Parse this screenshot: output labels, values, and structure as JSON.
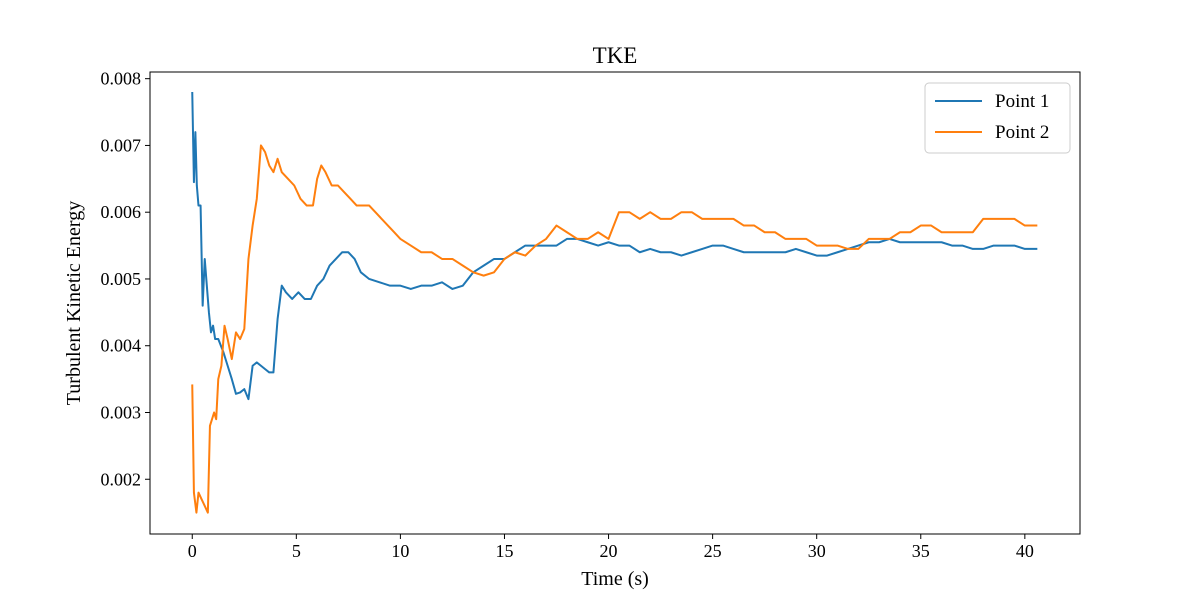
{
  "chart_data": {
    "type": "line",
    "title": "TKE",
    "xlabel": "Time (s)",
    "ylabel": "Turbulent Kinetic Energy",
    "xlim": [
      -2.03,
      42.65
    ],
    "ylim": [
      0.00118,
      0.0081
    ],
    "xticks": [
      0,
      5,
      10,
      15,
      20,
      25,
      30,
      35,
      40
    ],
    "xtick_labels": [
      "0",
      "5",
      "10",
      "15",
      "20",
      "25",
      "30",
      "35",
      "40"
    ],
    "yticks": [
      0.002,
      0.003,
      0.004,
      0.005,
      0.006,
      0.007,
      0.008
    ],
    "ytick_labels": [
      "0.002",
      "0.003",
      "0.004",
      "0.005",
      "0.006",
      "0.007",
      "0.008"
    ],
    "grid": false,
    "legend_position": "top-right",
    "series": [
      {
        "name": "Point 1",
        "color": "#1f77b4",
        "points": [
          [
            0.0,
            0.0078
          ],
          [
            0.08,
            0.00645
          ],
          [
            0.15,
            0.0072
          ],
          [
            0.22,
            0.0064
          ],
          [
            0.3,
            0.0061
          ],
          [
            0.4,
            0.0061
          ],
          [
            0.5,
            0.0046
          ],
          [
            0.6,
            0.0053
          ],
          [
            0.7,
            0.0049
          ],
          [
            0.8,
            0.0045
          ],
          [
            0.9,
            0.0042
          ],
          [
            1.0,
            0.0043
          ],
          [
            1.1,
            0.0041
          ],
          [
            1.25,
            0.0041
          ],
          [
            1.5,
            0.0039
          ],
          [
            1.7,
            0.0037
          ],
          [
            1.9,
            0.0035
          ],
          [
            2.1,
            0.00328
          ],
          [
            2.3,
            0.0033
          ],
          [
            2.5,
            0.00335
          ],
          [
            2.7,
            0.0032
          ],
          [
            2.9,
            0.0037
          ],
          [
            3.1,
            0.00375
          ],
          [
            3.3,
            0.0037
          ],
          [
            3.5,
            0.00365
          ],
          [
            3.7,
            0.0036
          ],
          [
            3.9,
            0.0036
          ],
          [
            4.1,
            0.0044
          ],
          [
            4.3,
            0.0049
          ],
          [
            4.5,
            0.0048
          ],
          [
            4.8,
            0.0047
          ],
          [
            5.1,
            0.0048
          ],
          [
            5.4,
            0.0047
          ],
          [
            5.7,
            0.0047
          ],
          [
            6.0,
            0.0049
          ],
          [
            6.3,
            0.005
          ],
          [
            6.6,
            0.0052
          ],
          [
            6.9,
            0.0053
          ],
          [
            7.2,
            0.0054
          ],
          [
            7.5,
            0.0054
          ],
          [
            7.8,
            0.0053
          ],
          [
            8.1,
            0.0051
          ],
          [
            8.5,
            0.005
          ],
          [
            9.0,
            0.00495
          ],
          [
            9.5,
            0.0049
          ],
          [
            10.0,
            0.0049
          ],
          [
            10.5,
            0.00485
          ],
          [
            11.0,
            0.0049
          ],
          [
            11.5,
            0.0049
          ],
          [
            12.0,
            0.00495
          ],
          [
            12.5,
            0.00485
          ],
          [
            13.0,
            0.0049
          ],
          [
            13.5,
            0.0051
          ],
          [
            14.0,
            0.0052
          ],
          [
            14.5,
            0.0053
          ],
          [
            15.0,
            0.0053
          ],
          [
            15.5,
            0.0054
          ],
          [
            16.0,
            0.0055
          ],
          [
            16.5,
            0.0055
          ],
          [
            17.0,
            0.0055
          ],
          [
            17.5,
            0.0055
          ],
          [
            18.0,
            0.0056
          ],
          [
            18.5,
            0.0056
          ],
          [
            19.0,
            0.00555
          ],
          [
            19.5,
            0.0055
          ],
          [
            20.0,
            0.00555
          ],
          [
            20.5,
            0.0055
          ],
          [
            21.0,
            0.0055
          ],
          [
            21.5,
            0.0054
          ],
          [
            22.0,
            0.00545
          ],
          [
            22.5,
            0.0054
          ],
          [
            23.0,
            0.0054
          ],
          [
            23.5,
            0.00535
          ],
          [
            24.0,
            0.0054
          ],
          [
            24.5,
            0.00545
          ],
          [
            25.0,
            0.0055
          ],
          [
            25.5,
            0.0055
          ],
          [
            26.0,
            0.00545
          ],
          [
            26.5,
            0.0054
          ],
          [
            27.0,
            0.0054
          ],
          [
            27.5,
            0.0054
          ],
          [
            28.0,
            0.0054
          ],
          [
            28.5,
            0.0054
          ],
          [
            29.0,
            0.00545
          ],
          [
            29.5,
            0.0054
          ],
          [
            30.0,
            0.00535
          ],
          [
            30.5,
            0.00535
          ],
          [
            31.0,
            0.0054
          ],
          [
            31.5,
            0.00545
          ],
          [
            32.0,
            0.0055
          ],
          [
            32.5,
            0.00555
          ],
          [
            33.0,
            0.00555
          ],
          [
            33.5,
            0.0056
          ],
          [
            34.0,
            0.00555
          ],
          [
            34.5,
            0.00555
          ],
          [
            35.0,
            0.00555
          ],
          [
            35.5,
            0.00555
          ],
          [
            36.0,
            0.00555
          ],
          [
            36.5,
            0.0055
          ],
          [
            37.0,
            0.0055
          ],
          [
            37.5,
            0.00545
          ],
          [
            38.0,
            0.00545
          ],
          [
            38.5,
            0.0055
          ],
          [
            39.0,
            0.0055
          ],
          [
            39.5,
            0.0055
          ],
          [
            40.0,
            0.00545
          ],
          [
            40.6,
            0.00545
          ]
        ]
      },
      {
        "name": "Point 2",
        "color": "#ff7f0e",
        "points": [
          [
            0.0,
            0.00342
          ],
          [
            0.08,
            0.0018
          ],
          [
            0.2,
            0.0015
          ],
          [
            0.3,
            0.0018
          ],
          [
            0.45,
            0.0017
          ],
          [
            0.6,
            0.0016
          ],
          [
            0.75,
            0.0015
          ],
          [
            0.85,
            0.0028
          ],
          [
            0.95,
            0.0029
          ],
          [
            1.05,
            0.003
          ],
          [
            1.15,
            0.0029
          ],
          [
            1.25,
            0.0035
          ],
          [
            1.4,
            0.0037
          ],
          [
            1.55,
            0.0043
          ],
          [
            1.7,
            0.0041
          ],
          [
            1.9,
            0.0038
          ],
          [
            2.1,
            0.0042
          ],
          [
            2.3,
            0.0041
          ],
          [
            2.5,
            0.00425
          ],
          [
            2.7,
            0.0053
          ],
          [
            2.9,
            0.0058
          ],
          [
            3.1,
            0.0062
          ],
          [
            3.3,
            0.007
          ],
          [
            3.5,
            0.0069
          ],
          [
            3.7,
            0.0067
          ],
          [
            3.9,
            0.0066
          ],
          [
            4.1,
            0.0068
          ],
          [
            4.3,
            0.0066
          ],
          [
            4.6,
            0.0065
          ],
          [
            4.9,
            0.0064
          ],
          [
            5.2,
            0.0062
          ],
          [
            5.5,
            0.0061
          ],
          [
            5.8,
            0.0061
          ],
          [
            6.0,
            0.0065
          ],
          [
            6.2,
            0.0067
          ],
          [
            6.4,
            0.0066
          ],
          [
            6.7,
            0.0064
          ],
          [
            7.0,
            0.0064
          ],
          [
            7.3,
            0.0063
          ],
          [
            7.6,
            0.0062
          ],
          [
            7.9,
            0.0061
          ],
          [
            8.2,
            0.0061
          ],
          [
            8.5,
            0.0061
          ],
          [
            8.8,
            0.006
          ],
          [
            9.1,
            0.0059
          ],
          [
            9.4,
            0.0058
          ],
          [
            9.7,
            0.0057
          ],
          [
            10.0,
            0.0056
          ],
          [
            10.5,
            0.0055
          ],
          [
            11.0,
            0.0054
          ],
          [
            11.5,
            0.0054
          ],
          [
            12.0,
            0.0053
          ],
          [
            12.5,
            0.0053
          ],
          [
            13.0,
            0.0052
          ],
          [
            13.5,
            0.0051
          ],
          [
            14.0,
            0.00505
          ],
          [
            14.5,
            0.0051
          ],
          [
            15.0,
            0.0053
          ],
          [
            15.5,
            0.0054
          ],
          [
            16.0,
            0.00535
          ],
          [
            16.5,
            0.0055
          ],
          [
            17.0,
            0.0056
          ],
          [
            17.5,
            0.0058
          ],
          [
            18.0,
            0.0057
          ],
          [
            18.5,
            0.0056
          ],
          [
            19.0,
            0.0056
          ],
          [
            19.5,
            0.0057
          ],
          [
            20.0,
            0.0056
          ],
          [
            20.5,
            0.006
          ],
          [
            21.0,
            0.006
          ],
          [
            21.5,
            0.0059
          ],
          [
            22.0,
            0.006
          ],
          [
            22.5,
            0.0059
          ],
          [
            23.0,
            0.0059
          ],
          [
            23.5,
            0.006
          ],
          [
            24.0,
            0.006
          ],
          [
            24.5,
            0.0059
          ],
          [
            25.0,
            0.0059
          ],
          [
            25.5,
            0.0059
          ],
          [
            26.0,
            0.0059
          ],
          [
            26.5,
            0.0058
          ],
          [
            27.0,
            0.0058
          ],
          [
            27.5,
            0.0057
          ],
          [
            28.0,
            0.0057
          ],
          [
            28.5,
            0.0056
          ],
          [
            29.0,
            0.0056
          ],
          [
            29.5,
            0.0056
          ],
          [
            30.0,
            0.0055
          ],
          [
            30.5,
            0.0055
          ],
          [
            31.0,
            0.0055
          ],
          [
            31.5,
            0.00545
          ],
          [
            32.0,
            0.00545
          ],
          [
            32.5,
            0.0056
          ],
          [
            33.0,
            0.0056
          ],
          [
            33.5,
            0.0056
          ],
          [
            34.0,
            0.0057
          ],
          [
            34.5,
            0.0057
          ],
          [
            35.0,
            0.0058
          ],
          [
            35.5,
            0.0058
          ],
          [
            36.0,
            0.0057
          ],
          [
            36.5,
            0.0057
          ],
          [
            37.0,
            0.0057
          ],
          [
            37.5,
            0.0057
          ],
          [
            38.0,
            0.0059
          ],
          [
            38.5,
            0.0059
          ],
          [
            39.0,
            0.0059
          ],
          [
            39.5,
            0.0059
          ],
          [
            40.0,
            0.0058
          ],
          [
            40.6,
            0.0058
          ]
        ]
      }
    ]
  }
}
